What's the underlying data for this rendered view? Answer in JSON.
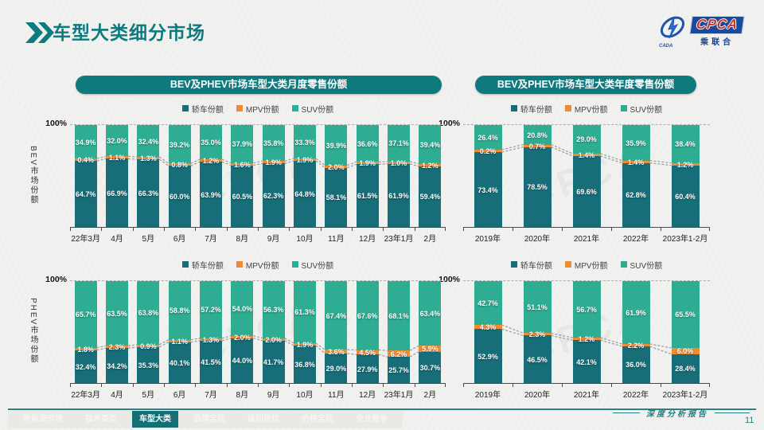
{
  "page": {
    "title": "车型大类细分市场",
    "page_number": "11",
    "report_note": "深度分析报告"
  },
  "logo": {
    "main": "CPCA",
    "sub": "乘联合",
    "emblem": "CADA"
  },
  "banners": {
    "monthly": "BEV及PHEV市场车型大类月度零售份额",
    "yearly": "BEV及PHEV市场车型大类年度零售份额"
  },
  "axis": {
    "top_label": "100%"
  },
  "colors": {
    "sedan": "#176e79",
    "mpv": "#ef8b33",
    "suv": "#2fad93",
    "accent": "#0f7a7e"
  },
  "legend": [
    {
      "label": "轿车份额",
      "color": "#176e79"
    },
    {
      "label": "MPV份额",
      "color": "#ef8b33"
    },
    {
      "label": "SUV份额",
      "color": "#2fad93"
    }
  ],
  "footer_tabs": [
    {
      "label": "新能源市场",
      "active": false
    },
    {
      "label": "技术类型",
      "active": false
    },
    {
      "label": "车型大类",
      "active": true
    },
    {
      "label": "品牌定位",
      "active": false
    },
    {
      "label": "级别定位",
      "active": false
    },
    {
      "label": "价格定位",
      "active": false
    },
    {
      "label": "企业竞争",
      "active": false
    }
  ],
  "chart_data": [
    {
      "id": "bev-monthly",
      "type": "bar",
      "stacked": true,
      "ylim": [
        0,
        100
      ],
      "side_label": "BEV市场份额",
      "categories": [
        "22年3月",
        "4月",
        "5月",
        "6月",
        "7月",
        "8月",
        "9月",
        "10月",
        "11月",
        "12月",
        "23年1月",
        "2月"
      ],
      "series": [
        {
          "name": "轿车份额",
          "color": "#176e79",
          "values": [
            64.7,
            66.9,
            66.3,
            60.0,
            63.9,
            60.5,
            62.3,
            64.8,
            58.1,
            61.5,
            61.9,
            59.4
          ]
        },
        {
          "name": "MPV份额",
          "color": "#ef8b33",
          "values": [
            0.4,
            1.1,
            1.3,
            0.8,
            1.2,
            1.6,
            1.9,
            1.9,
            2.0,
            1.9,
            1.0,
            1.2
          ]
        },
        {
          "name": "SUV份额",
          "color": "#2fad93",
          "values": [
            34.9,
            32.0,
            32.4,
            39.2,
            35.0,
            37.9,
            35.8,
            33.3,
            39.9,
            36.6,
            37.1,
            39.4
          ]
        }
      ]
    },
    {
      "id": "bev-yearly",
      "type": "bar",
      "stacked": true,
      "ylim": [
        0,
        100
      ],
      "categories": [
        "2019年",
        "2020年",
        "2021年",
        "2022年",
        "2023年1-2月"
      ],
      "series": [
        {
          "name": "轿车份额",
          "color": "#176e79",
          "values": [
            73.4,
            78.5,
            69.6,
            62.8,
            60.4
          ]
        },
        {
          "name": "MPV份额",
          "color": "#ef8b33",
          "values": [
            0.2,
            0.7,
            1.4,
            1.4,
            1.2
          ]
        },
        {
          "name": "SUV份额",
          "color": "#2fad93",
          "values": [
            26.4,
            20.8,
            29.0,
            35.9,
            38.4
          ]
        }
      ]
    },
    {
      "id": "phev-monthly",
      "type": "bar",
      "stacked": true,
      "ylim": [
        0,
        100
      ],
      "side_label": "PHEV市场份额",
      "categories": [
        "22年3月",
        "4月",
        "5月",
        "6月",
        "7月",
        "8月",
        "9月",
        "10月",
        "11月",
        "12月",
        "23年1月",
        "2月"
      ],
      "series": [
        {
          "name": "轿车份额",
          "color": "#176e79",
          "values": [
            32.4,
            34.2,
            35.3,
            40.1,
            41.5,
            44.0,
            41.7,
            36.8,
            29.0,
            27.9,
            25.7,
            30.7
          ]
        },
        {
          "name": "MPV份额",
          "color": "#ef8b33",
          "values": [
            1.8,
            2.3,
            0.9,
            1.1,
            1.3,
            2.0,
            2.0,
            1.9,
            3.6,
            4.5,
            6.2,
            5.9
          ]
        },
        {
          "name": "SUV份额",
          "color": "#2fad93",
          "values": [
            65.7,
            63.5,
            63.8,
            58.8,
            57.2,
            54.0,
            56.3,
            61.3,
            67.4,
            67.6,
            68.1,
            63.4
          ]
        }
      ]
    },
    {
      "id": "phev-yearly",
      "type": "bar",
      "stacked": true,
      "ylim": [
        0,
        100
      ],
      "categories": [
        "2019年",
        "2020年",
        "2021年",
        "2022年",
        "2023年1-2月"
      ],
      "series": [
        {
          "name": "轿车份额",
          "color": "#176e79",
          "values": [
            52.9,
            46.5,
            42.1,
            36.0,
            28.4
          ]
        },
        {
          "name": "MPV份额",
          "color": "#ef8b33",
          "values": [
            4.3,
            2.3,
            1.2,
            2.2,
            6.0
          ]
        },
        {
          "name": "SUV份额",
          "color": "#2fad93",
          "values": [
            42.7,
            51.1,
            56.7,
            61.9,
            65.5
          ]
        }
      ]
    }
  ]
}
